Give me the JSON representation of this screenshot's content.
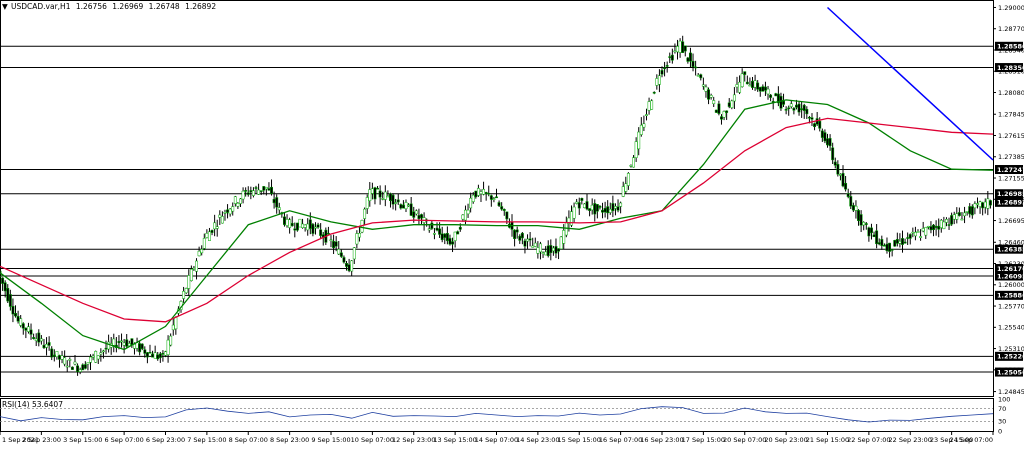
{
  "header": {
    "symbol": "USDCAD.var,H1",
    "open": "1.26756",
    "high": "1.26969",
    "low": "1.26748",
    "close": "1.26892"
  },
  "chart_data": {
    "type": "line",
    "symbol": "USDCAD.var,H1",
    "ylim": [
      1.24797,
      1.2907
    ],
    "y_ticks": [
      "1.29000",
      "1.28770",
      "1.28540",
      "1.28310",
      "1.28080",
      "1.27845",
      "1.27615",
      "1.27385",
      "1.27155",
      "1.26925",
      "1.26695",
      "1.26460",
      "1.26230",
      "1.26000",
      "1.25770",
      "1.25540",
      "1.25310",
      "1.25080",
      "1.24845"
    ],
    "x_labels": [
      "1 Sep 2021",
      "2 Sep 23:00",
      "3 Sep 15:00",
      "6 Sep 07:00",
      "6 Sep 23:00",
      "7 Sep 15:00",
      "8 Sep 07:00",
      "8 Sep 23:00",
      "9 Sep 15:00",
      "10 Sep 07:00",
      "12 Sep 23:00",
      "13 Sep 15:00",
      "14 Sep 07:00",
      "14 Sep 23:00",
      "15 Sep 15:00",
      "16 Sep 07:00",
      "16 Sep 23:00",
      "17 Sep 15:00",
      "20 Sep 07:00",
      "20 Sep 23:00",
      "21 Sep 15:00",
      "22 Sep 07:00",
      "22 Sep 23:00",
      "23 Sep 15:00",
      "24 Sep 07:00"
    ],
    "x_range": [
      0,
      24
    ],
    "levels": [
      "1.28580",
      "1.28350",
      "1.27247",
      "1.26985",
      "1.26385",
      "1.26176",
      "1.26095",
      "1.25886",
      "1.25226",
      "1.25056"
    ],
    "current_price": "1.26892",
    "price_colors": {
      "up_candle": "#00aa00",
      "candle_body": "#000000",
      "level_label_bg": "#000000"
    },
    "series": [
      {
        "name": "",
        "color": "#000000",
        "kind": "price_close",
        "x": [
          0,
          0.5,
          1,
          1.5,
          2,
          2.5,
          3,
          3.5,
          4,
          4.5,
          5,
          5.5,
          6,
          6.5,
          7,
          7.5,
          8,
          8.5,
          9,
          9.5,
          10,
          10.5,
          11,
          11.5,
          12,
          12.5,
          13,
          13.5,
          14,
          14.5,
          15,
          15.5,
          16,
          16.5,
          17,
          17.5,
          18,
          18.5,
          19,
          19.5,
          20,
          20.5,
          21,
          21.5,
          22,
          22.5,
          23,
          23.5,
          24
        ],
        "y": [
          1.2615,
          1.256,
          1.254,
          1.252,
          1.251,
          1.2528,
          1.254,
          1.253,
          1.252,
          1.259,
          1.265,
          1.268,
          1.27,
          1.2705,
          1.2665,
          1.2665,
          1.265,
          1.262,
          1.27,
          1.2695,
          1.268,
          1.266,
          1.2645,
          1.27,
          1.2695,
          1.2655,
          1.264,
          1.2635,
          1.269,
          1.268,
          1.2685,
          1.276,
          1.283,
          1.286,
          1.282,
          1.278,
          1.2825,
          1.281,
          1.2795,
          1.279,
          1.276,
          1.27,
          1.266,
          1.264,
          1.265,
          1.266,
          1.267,
          1.268,
          1.2689
        ]
      },
      {
        "name": "",
        "color": "#008000",
        "kind": "moving_average_fast",
        "x": [
          0,
          1,
          2,
          3,
          4,
          5,
          6,
          7,
          8,
          9,
          10,
          11,
          12,
          13,
          14,
          15,
          16,
          17,
          18,
          19,
          20,
          21,
          22,
          23,
          24
        ],
        "y": [
          1.2613,
          1.258,
          1.2545,
          1.253,
          1.2555,
          1.261,
          1.2665,
          1.268,
          1.2668,
          1.266,
          1.2665,
          1.2665,
          1.2664,
          1.2664,
          1.266,
          1.2672,
          1.268,
          1.273,
          1.279,
          1.28,
          1.2795,
          1.2775,
          1.2745,
          1.2725,
          1.2724
        ]
      },
      {
        "name": "",
        "color": "#dd0033",
        "kind": "moving_average_slow",
        "x": [
          0,
          1,
          2,
          3,
          4,
          5,
          6,
          7,
          8,
          9,
          10,
          11,
          12,
          13,
          14,
          15,
          16,
          17,
          18,
          19,
          20,
          21,
          22,
          23,
          24
        ],
        "y": [
          1.262,
          1.26,
          1.258,
          1.2563,
          1.256,
          1.258,
          1.261,
          1.2635,
          1.2655,
          1.2667,
          1.267,
          1.2669,
          1.2668,
          1.2668,
          1.2667,
          1.2668,
          1.268,
          1.271,
          1.2745,
          1.277,
          1.278,
          1.2775,
          1.277,
          1.2765,
          1.2763
        ]
      },
      {
        "name": "",
        "color": "#0000ff",
        "kind": "trendline",
        "x": [
          20,
          24
        ],
        "y": [
          1.29,
          1.2735
        ]
      }
    ],
    "grid": false
  },
  "rsi": {
    "label": "RSI(14) 53.6407",
    "ticks": [
      "100",
      "70",
      "30",
      "0"
    ],
    "ylim": [
      0,
      100
    ],
    "dashed_levels": [
      70,
      30
    ],
    "color": "#1e3fa0",
    "x": [
      0,
      0.5,
      1,
      1.5,
      2,
      2.5,
      3,
      3.5,
      4,
      4.5,
      5,
      5.5,
      6,
      6.5,
      7,
      7.5,
      8,
      8.5,
      9,
      9.5,
      10,
      10.5,
      11,
      11.5,
      12,
      12.5,
      13,
      13.5,
      14,
      14.5,
      15,
      15.5,
      16,
      16.5,
      17,
      17.5,
      18,
      18.5,
      19,
      19.5,
      20,
      20.5,
      21,
      21.5,
      22,
      22.5,
      23,
      23.5,
      24
    ],
    "y": [
      45,
      32,
      42,
      36,
      35,
      45,
      48,
      42,
      44,
      66,
      72,
      62,
      55,
      60,
      44,
      50,
      52,
      40,
      58,
      46,
      48,
      47,
      45,
      55,
      50,
      45,
      48,
      47,
      56,
      50,
      53,
      70,
      76,
      73,
      55,
      56,
      72,
      60,
      55,
      56,
      45,
      35,
      28,
      34,
      33,
      40,
      46,
      50,
      54
    ]
  }
}
